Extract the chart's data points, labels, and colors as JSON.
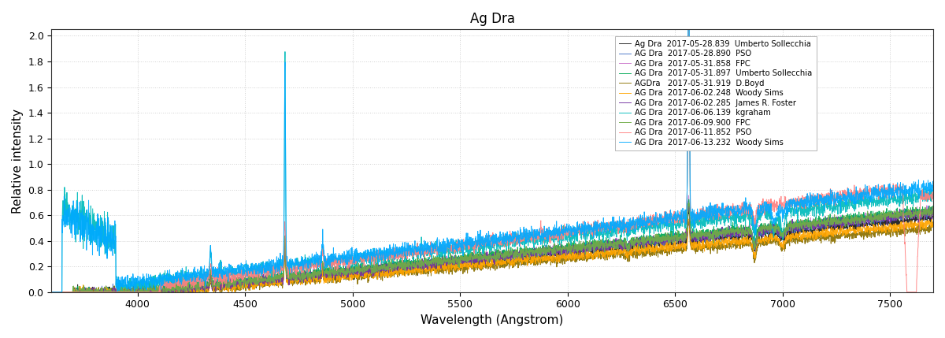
{
  "title": "Ag Dra",
  "xlabel": "Wavelength (Angstrom)",
  "ylabel": "Relative intensity",
  "xlim": [
    3600,
    7700
  ],
  "ylim": [
    0,
    2.05
  ],
  "yticks": [
    0,
    0.2,
    0.4,
    0.6,
    0.8,
    1.0,
    1.2,
    1.4,
    1.6,
    1.8,
    2.0
  ],
  "xticks": [
    4000,
    4500,
    5000,
    5500,
    6000,
    6500,
    7000,
    7500
  ],
  "series": [
    {
      "label": "Ag Dra  2017-05-28.839  Umberto Sollecchia",
      "color": "#1a1a1a",
      "lw": 0.7
    },
    {
      "label": "AG Dra  2017-05-28.890  PSO",
      "color": "#4472c4",
      "lw": 0.7
    },
    {
      "label": "AG Dra  2017-05-31.858  FPC",
      "color": "#cc77cc",
      "lw": 0.7
    },
    {
      "label": "AG Dra  2017-05-31.897  Umberto Sollecchia",
      "color": "#00aa55",
      "lw": 0.7
    },
    {
      "label": "AGDra   2017-05-31.919  D.Boyd",
      "color": "#8b7000",
      "lw": 0.7
    },
    {
      "label": "AG Dra  2017-06-02.248  Woody Sims",
      "color": "#ffa500",
      "lw": 0.7
    },
    {
      "label": "AG Dra  2017-06-02.285  James R. Foster",
      "color": "#7030a0",
      "lw": 0.7
    },
    {
      "label": "AG Dra  2017-06-06.139  kgraham",
      "color": "#00bbbb",
      "lw": 0.7
    },
    {
      "label": "AG Dra  2017-06-09.900  FPC",
      "color": "#70ad47",
      "lw": 0.7
    },
    {
      "label": "AG Dra  2017-06-11.852  PSO",
      "color": "#ff8080",
      "lw": 0.7
    },
    {
      "label": "AG Dra  2017-06-13.232  Woody Sims",
      "color": "#00aaff",
      "lw": 0.7
    }
  ],
  "background_color": "#ffffff",
  "grid_color": "#cccccc",
  "figsize": [
    12.0,
    4.29
  ],
  "dpi": 100
}
